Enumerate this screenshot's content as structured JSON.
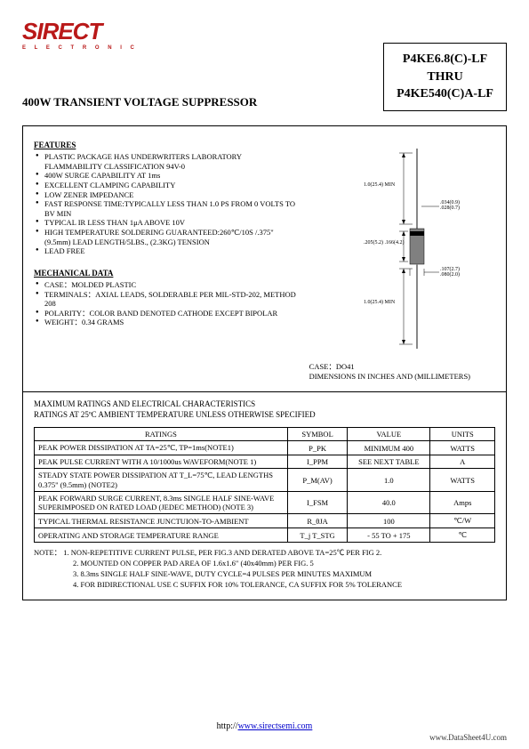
{
  "logo": {
    "brand": "SIRECT",
    "subtitle": "E L E C T R O N I C"
  },
  "part_box": {
    "line1": "P4KE6.8(C)-LF",
    "line2": "THRU",
    "line3": "P4KE540(C)A-LF"
  },
  "title": "400W TRANSIENT VOLTAGE SUPPRESSOR",
  "features": {
    "heading": "FEATURES",
    "items": [
      "PLASTIC PACKAGE HAS UNDERWRITERS LABORATORY FLAMMABILITY CLASSIFICATION 94V-0",
      "400W SURGE CAPABILITY AT 1ms",
      "EXCELLENT CLAMPING CAPABILITY",
      "LOW ZENER IMPEDANCE",
      "FAST RESPONSE TIME:TYPICALLY LESS THAN 1.0 PS FROM 0 VOLTS TO BV MIN",
      "TYPICAL IR LESS THAN 1μA ABOVE 10V",
      "HIGH TEMPERATURE SOLDERING GUARANTEED:260℃/10S /.375\" (9.5mm) LEAD LENGTH/5LBS., (2.3KG) TENSION",
      "LEAD FREE"
    ]
  },
  "mechanical": {
    "heading": "MECHANICAL DATA",
    "items": [
      "CASE：MOLDED PLASTIC",
      "TERMINALS：AXIAL LEADS, SOLDERABLE PER MIL-STD-202, METHOD 208",
      "POLARITY：COLOR BAND DENOTED CATHODE EXCEPT BIPOLAR",
      "WEIGHT：0.34 GRAMS"
    ]
  },
  "diagram": {
    "dim_top": "1.0(25.4) MIN",
    "dim_lead": ".034(0.9) .028(0.7)",
    "dim_body_h": ".205(5.2) .166(4.2)",
    "dim_body_w": ".107(2.7) .080(2.0)",
    "dim_bottom": "1.0(25.4) MIN",
    "body_color": "#808080",
    "band_color": "#000000",
    "lead_color": "#888888"
  },
  "case_label": {
    "line1": "CASE：DO41",
    "line2": "DIMENSIONS IN INCHES AND (MILLIMETERS)"
  },
  "ratings_intro": {
    "line1": "MAXIMUM RATINGS AND ELECTRICAL CHARACTERISTICS",
    "line2": "RATINGS AT 25ºC AMBIENT TEMPERATURE UNLESS OTHERWISE SPECIFIED"
  },
  "ratings_table": {
    "headers": [
      "RATINGS",
      "SYMBOL",
      "VALUE",
      "UNITS"
    ],
    "rows": [
      [
        "PEAK POWER DISSIPATION AT TA=25℃, TP=1ms(NOTE1)",
        "P_PK",
        "MINIMUM 400",
        "WATTS"
      ],
      [
        "PEAK PULSE CURRENT WITH A 10/1000us WAVEFORM(NOTE 1)",
        "I_PPM",
        "SEE NEXT TABLE",
        "A"
      ],
      [
        "STEADY STATE POWER DISSIPATION AT T_L=75℃, LEAD LENGTHS 0.375\" (9.5mm) (NOTE2)",
        "P_M(AV)",
        "1.0",
        "WATTS"
      ],
      [
        "PEAK FORWARD SURGE CURRENT, 8.3ms SINGLE HALF SINE-WAVE SUPERIMPOSED ON RATED LOAD (JEDEC METHOD) (NOTE 3)",
        "I_FSM",
        "40.0",
        "Amps"
      ],
      [
        "TYPICAL THERMAL RESISTANCE JUNCTUION-TO-AMBIENT",
        "R_θJA",
        "100",
        "℃/W"
      ],
      [
        "OPERATING AND STORAGE TEMPERATURE RANGE",
        "T_j T_STG",
        "- 55 TO + 175",
        "℃"
      ]
    ]
  },
  "notes": {
    "prefix": "NOTE：",
    "items": [
      "1. NON-REPETITIVE CURRENT PULSE, PER FIG.3 AND DERATED ABOVE TA=25℃ PER FIG 2.",
      "2. MOUNTED ON COPPER PAD AREA OF 1.6x1.6\" (40x40mm) PER FIG. 5",
      "3. 8.3ms SINGLE HALF SINE-WAVE, DUTY CYCLE=4 PULSES PER MINUTES MAXIMUM",
      "4. FOR BIDIRECTIONAL USE C SUFFIX FOR 10% TOLERANCE, CA SUFFIX FOR 5% TOLERANCE"
    ]
  },
  "footer": {
    "url_prefix": "http://",
    "url": "www.sirectsemi.com",
    "right": "www.DataSheet4U.com"
  }
}
